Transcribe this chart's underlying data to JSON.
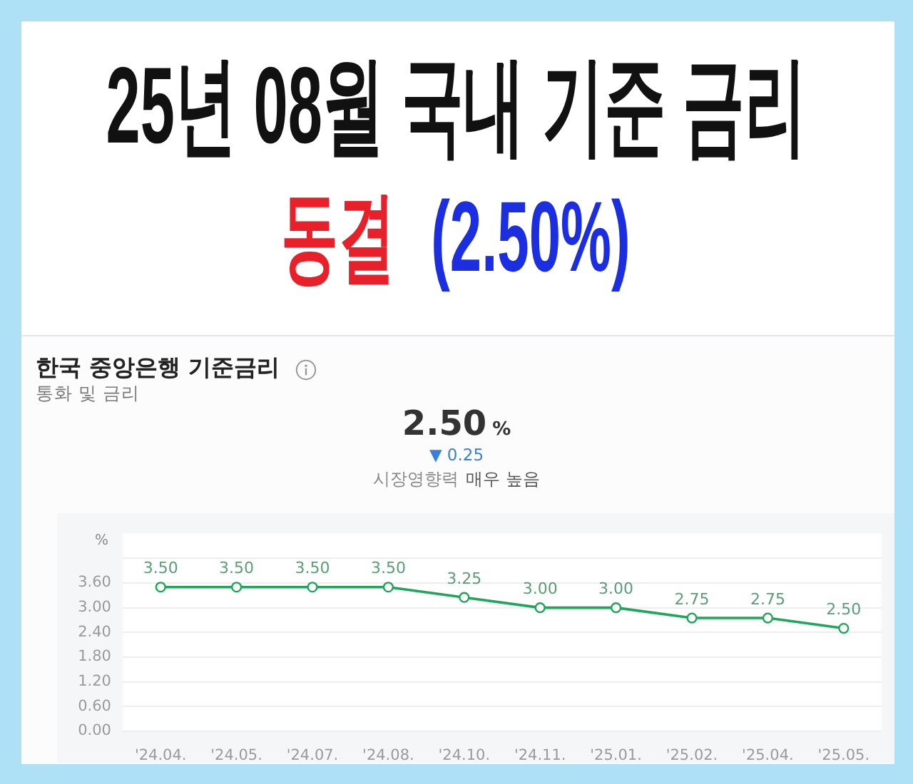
{
  "chart_data": {
    "type": "line",
    "title": "25년 08월 국내 기준 금리",
    "subtitle": "동결 (2.50%)",
    "ylabel": "%",
    "categories": [
      "'24.04.",
      "'24.05.",
      "'24.07.",
      "'24.08.",
      "'24.10.",
      "'24.11.",
      "'25.01.",
      "'25.02.",
      "'25.04.",
      "'25.05."
    ],
    "series": [
      {
        "color": "#1fa65a",
        "values": [
          3.5,
          3.5,
          3.5,
          3.5,
          3.25,
          3.0,
          3.0,
          2.75,
          2.75,
          2.5
        ],
        "value_labels": [
          "3.50",
          "3.50",
          "3.50",
          "3.50",
          "3.25",
          "3.00",
          "3.00",
          "2.75",
          "2.75",
          "2.50"
        ]
      }
    ],
    "ylim": [
      0,
      4.8
    ],
    "yticks": [
      {
        "value": 0,
        "label": "0.00"
      },
      {
        "value": 0.6,
        "label": "0.60"
      },
      {
        "value": 1.2,
        "label": "1.20"
      },
      {
        "value": 1.8,
        "label": "1.80"
      },
      {
        "value": 2.4,
        "label": "2.40"
      },
      {
        "value": 3.0,
        "label": "3.00"
      },
      {
        "value": 3.6,
        "label": "3.60"
      },
      {
        "value": 4.2,
        "label": null
      }
    ],
    "grid": "y",
    "marker": "circle",
    "annotations": [
      "한국 중앙은행 기준금리",
      "통화 및 금리",
      "2.50 %",
      "▼ 0.25",
      "시장영향력",
      "매우 높음"
    ]
  }
}
